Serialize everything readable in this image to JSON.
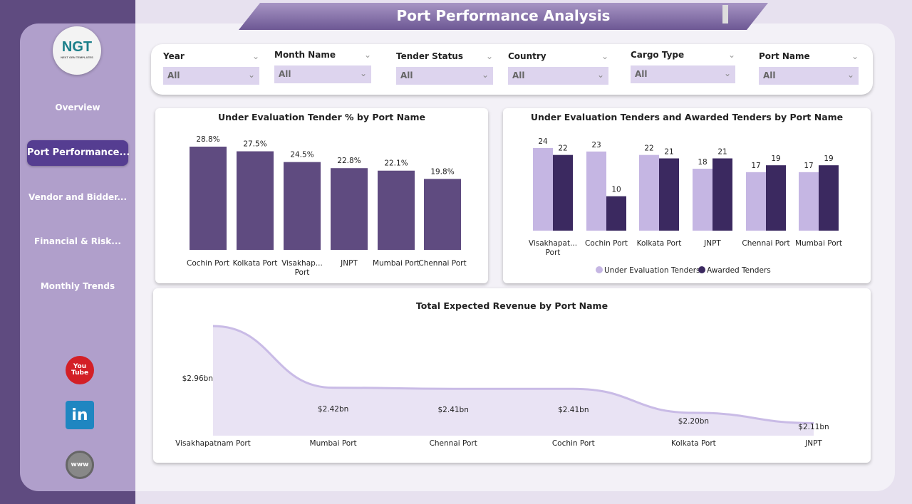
{
  "header": {
    "title": "Port Performance Analysis"
  },
  "logo": {
    "text": "NGT",
    "subtitle": "NEXT GEN TEMPLATES"
  },
  "sidebar": {
    "items": [
      {
        "label": "Overview"
      },
      {
        "label": "Port Performance..."
      },
      {
        "label": "Vendor and Bidder..."
      },
      {
        "label": "Financial & Risk..."
      },
      {
        "label": "Monthly Trends"
      }
    ],
    "active": 1,
    "social": [
      {
        "icon": "youtube-icon",
        "label": "You Tube"
      },
      {
        "icon": "linkedin-icon",
        "label": "in"
      },
      {
        "icon": "globe-icon",
        "label": "www"
      }
    ]
  },
  "filters": [
    {
      "label": "Year",
      "value": "All"
    },
    {
      "label": "Month Name",
      "value": "All"
    },
    {
      "label": "Tender Status",
      "value": "All"
    },
    {
      "label": "Country",
      "value": "All"
    },
    {
      "label": "Cargo Type",
      "value": "All"
    },
    {
      "label": "Port Name",
      "value": "All"
    }
  ],
  "colors": {
    "bar": "#5f4b80",
    "light": "#c5b6e3",
    "dark": "#3b2960",
    "area": "#e9e3f4",
    "line": "#c9bbe6"
  },
  "chart_data": [
    {
      "type": "bar",
      "title": "Under Evaluation Tender % by Port Name",
      "categories": [
        "Cochin Port",
        "Kolkata Port",
        "Visakhap... Port",
        "JNPT",
        "Mumbai Port",
        "Chennai Port"
      ],
      "values": [
        28.8,
        27.5,
        24.5,
        22.8,
        22.1,
        19.8
      ],
      "labels": [
        "28.8%",
        "27.5%",
        "24.5%",
        "22.8%",
        "22.1%",
        "19.8%"
      ],
      "ylim": [
        0,
        28.8
      ]
    },
    {
      "type": "bar",
      "title": "Under Evaluation Tenders and Awarded Tenders by Port Name",
      "categories": [
        "Visakhapat... Port",
        "Cochin Port",
        "Kolkata Port",
        "JNPT",
        "Chennai Port",
        "Mumbai Port"
      ],
      "series": [
        {
          "name": "Under Evaluation Tenders",
          "values": [
            24,
            23,
            22,
            18,
            17,
            17
          ]
        },
        {
          "name": "Awarded Tenders",
          "values": [
            22,
            10,
            21,
            21,
            19,
            19
          ]
        }
      ],
      "legend": "bottom"
    },
    {
      "type": "area",
      "title": "Total Expected Revenue by Port Name",
      "categories": [
        "Visakhapatnam Port",
        "Mumbai Port",
        "Chennai Port",
        "Cochin Port",
        "Kolkata Port",
        "JNPT"
      ],
      "values": [
        2.96,
        2.42,
        2.41,
        2.41,
        2.2,
        2.11
      ],
      "labels": [
        "$2.96bn",
        "$2.42bn",
        "$2.41bn",
        "$2.41bn",
        "$2.20bn",
        "$2.11bn"
      ],
      "unit": "bn USD",
      "ylim": [
        2.0,
        2.96
      ]
    }
  ]
}
